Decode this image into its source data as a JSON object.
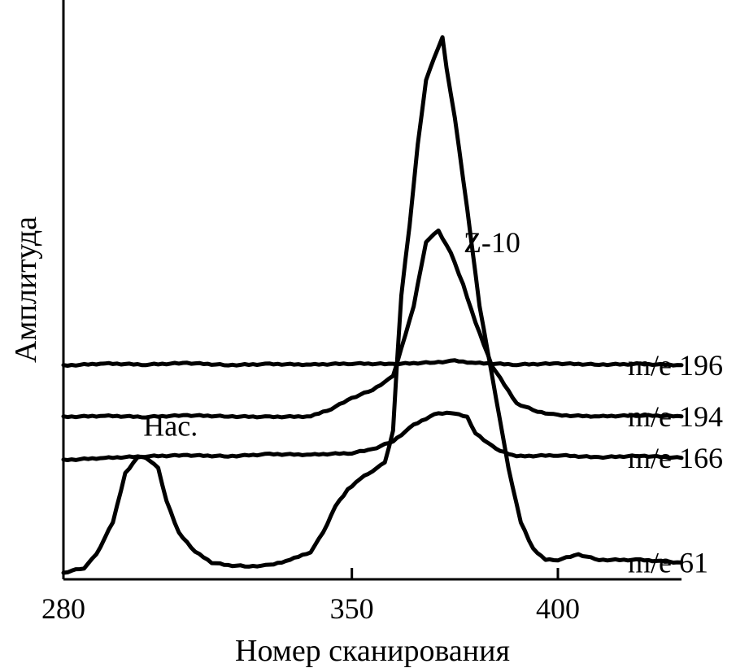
{
  "chart_data": {
    "type": "line",
    "title": "",
    "xlabel": "Номер сканирования",
    "ylabel": "Амплитуда",
    "xlim": [
      280,
      430
    ],
    "ylim": [
      0,
      100
    ],
    "xticks": [
      280,
      350,
      400
    ],
    "grid": false,
    "series": [
      {
        "name": "m/e 196",
        "x": [
          280,
          290,
          300,
          310,
          320,
          330,
          340,
          350,
          360,
          370,
          375,
          380,
          390,
          400,
          410,
          420,
          430
        ],
        "values": [
          39,
          39.4,
          39.2,
          39.5,
          39.1,
          39.3,
          39.2,
          39.4,
          39.3,
          39.6,
          39.9,
          39.5,
          39.2,
          39.4,
          39.2,
          39.3,
          39.1
        ]
      },
      {
        "name": "m/e 194",
        "x": [
          280,
          290,
          300,
          310,
          320,
          330,
          340,
          345,
          350,
          355,
          360,
          365,
          368,
          371,
          374,
          377,
          380,
          384,
          390,
          395,
          400,
          410,
          420,
          430
        ],
        "values": [
          29.5,
          29.7,
          29.5,
          29.8,
          29.6,
          29.5,
          29.6,
          31,
          33,
          34.5,
          37,
          50,
          62,
          64,
          60,
          54,
          47,
          39,
          32,
          30.5,
          29.8,
          29.6,
          29.8,
          29.6
        ]
      },
      {
        "name": "m/e 166",
        "x": [
          280,
          290,
          300,
          310,
          320,
          330,
          340,
          350,
          355,
          360,
          365,
          370,
          374,
          378,
          380,
          385,
          390,
          400,
          410,
          420,
          430
        ],
        "values": [
          21.5,
          21.9,
          22.2,
          22.4,
          22.2,
          22.6,
          22.5,
          22.8,
          23.5,
          25,
          28,
          30,
          30.3,
          29.5,
          26.5,
          23.5,
          22.2,
          22.4,
          22,
          22.3,
          21.9
        ]
      },
      {
        "name": "m/e 61",
        "x": [
          280,
          282,
          285,
          288,
          292,
          295,
          298,
          300,
          303,
          305,
          308,
          312,
          316,
          320,
          325,
          330,
          335,
          340,
          343,
          346,
          349,
          352,
          355,
          358,
          360,
          361,
          362,
          364,
          366,
          368,
          370,
          371,
          372,
          373,
          375,
          378,
          381,
          385,
          388,
          391,
          394,
          397,
          400,
          405,
          410,
          420,
          430
        ],
        "values": [
          0.5,
          1,
          1.5,
          4,
          10,
          19,
          22,
          22,
          20,
          14,
          8,
          4.5,
          2.5,
          2,
          1.8,
          2,
          3,
          4.5,
          8,
          13,
          16,
          18,
          19.5,
          21,
          27,
          40,
          52,
          65,
          80,
          92,
          96,
          98,
          100,
          94,
          85,
          68,
          50,
          33,
          20,
          10,
          5,
          3,
          3,
          4,
          3,
          3,
          2.5
        ]
      }
    ],
    "annotations": [
      {
        "text": "Z-10",
        "x": 384,
        "y": 60
      },
      {
        "text": "Нас.",
        "x": 306,
        "y": 26
      }
    ],
    "series_labels": [
      "m/e 196",
      "m/e 194",
      "m/e 166",
      "m/e 61"
    ]
  }
}
